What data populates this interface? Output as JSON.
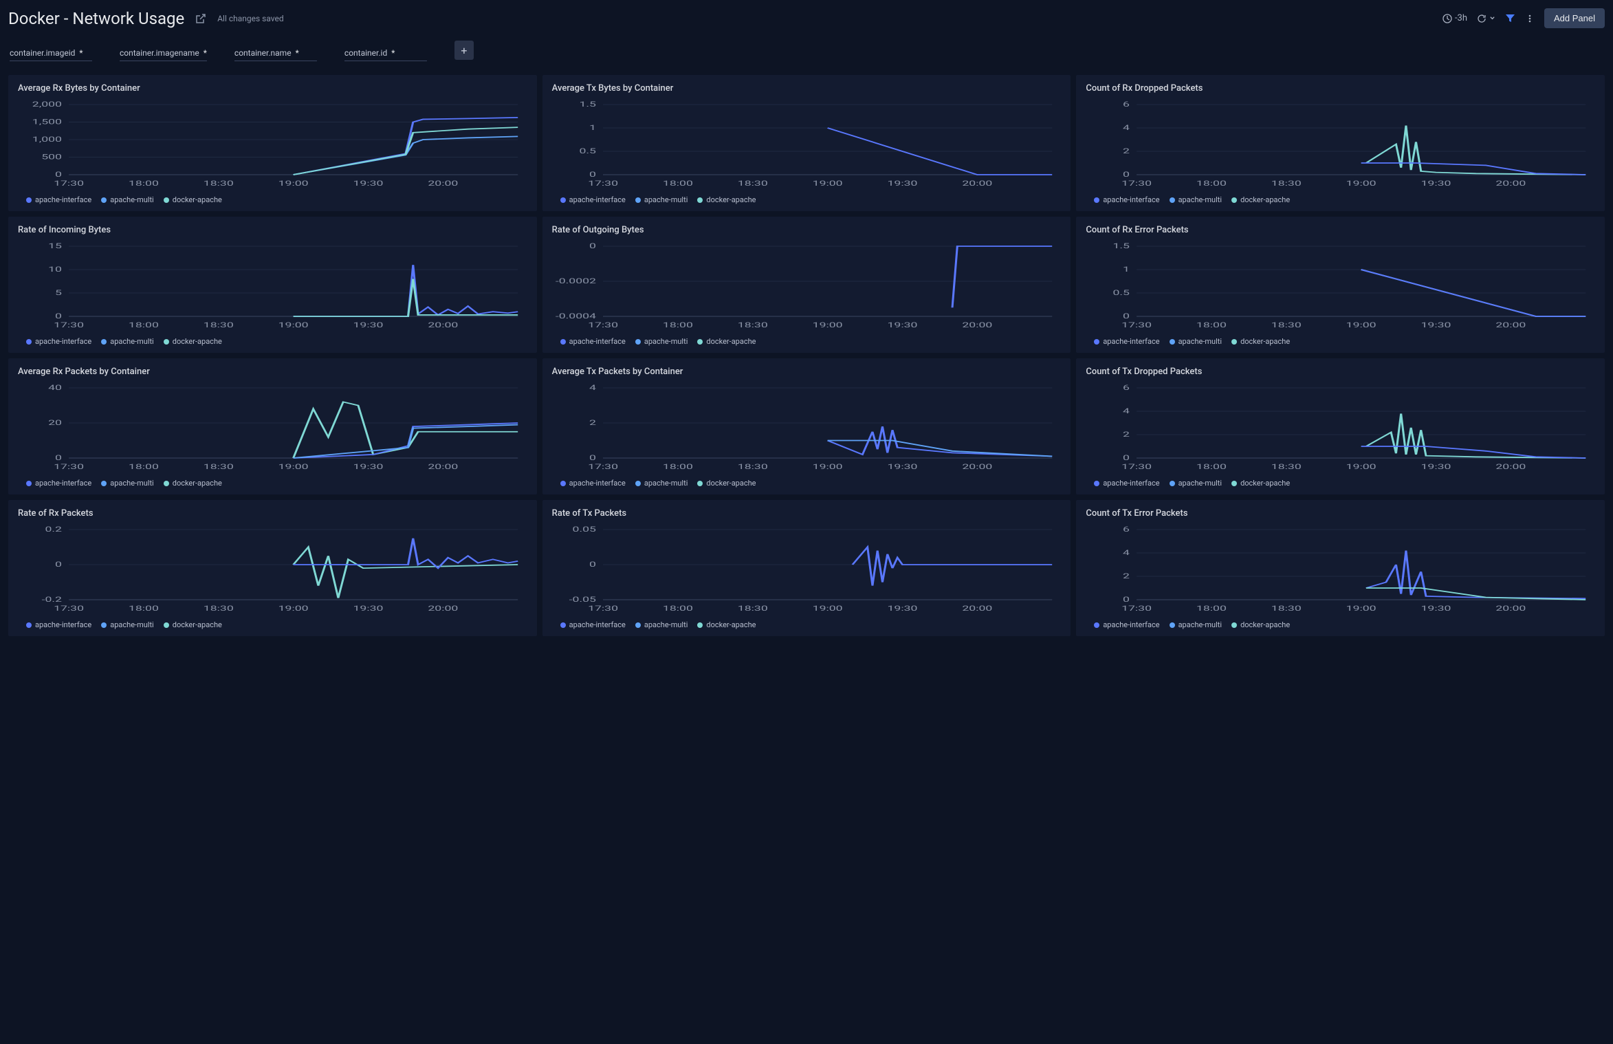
{
  "header": {
    "title": "Docker - Network Usage",
    "save_status": "All changes saved",
    "time_range": "-3h",
    "add_panel_label": "Add Panel"
  },
  "filters": [
    {
      "label": "container.imageid",
      "value": "*"
    },
    {
      "label": "container.imagename",
      "value": "*"
    },
    {
      "label": "container.name",
      "value": "*"
    },
    {
      "label": "container.id",
      "value": "*"
    }
  ],
  "colors": {
    "bg": "#0d1424",
    "panel_bg": "#131b30",
    "text": "#d4d7de",
    "muted": "#8a93a6",
    "grid": "#1f2a42",
    "axis": "#3a4560",
    "series": {
      "apache-interface": "#5a78ff",
      "apache-multi": "#5fa3f7",
      "docker-apache": "#7fd8d4"
    }
  },
  "x_axis": {
    "ticks": [
      "17:30",
      "18:00",
      "18:30",
      "19:00",
      "19:30",
      "20:00"
    ],
    "min": 0,
    "max": 180
  },
  "legend_items": [
    "apache-interface",
    "apache-multi",
    "docker-apache"
  ],
  "panels": [
    {
      "id": "avg-rx-bytes",
      "title": "Average Rx Bytes by Container",
      "y": {
        "min": 0,
        "max": 2000,
        "ticks": [
          0,
          500,
          1000,
          1500,
          2000
        ],
        "labels": [
          "0",
          "500",
          "1,000",
          "1,500",
          "2,000"
        ]
      },
      "legend_order": [
        "apache-interface",
        "apache-multi",
        "docker-apache"
      ],
      "series": [
        {
          "name": "apache-interface",
          "points": [
            [
              90,
              0
            ],
            [
              135,
              600
            ],
            [
              138,
              1500
            ],
            [
              142,
              1580
            ],
            [
              160,
              1600
            ],
            [
              180,
              1630
            ]
          ]
        },
        {
          "name": "apache-multi",
          "points": [
            [
              90,
              0
            ],
            [
              135,
              560
            ],
            [
              138,
              900
            ],
            [
              142,
              1000
            ],
            [
              160,
              1050
            ],
            [
              180,
              1090
            ]
          ]
        },
        {
          "name": "docker-apache",
          "points": [
            [
              90,
              0
            ],
            [
              135,
              580
            ],
            [
              138,
              1200
            ],
            [
              160,
              1300
            ],
            [
              180,
              1350
            ]
          ]
        }
      ]
    },
    {
      "id": "avg-tx-bytes",
      "title": "Average Tx Bytes by Container",
      "y": {
        "min": 0,
        "max": 1.5,
        "ticks": [
          0,
          0.5,
          1,
          1.5
        ],
        "labels": [
          "0",
          "0.5",
          "1",
          "1.5"
        ]
      },
      "legend_order": [
        "apache-interface",
        "apache-multi",
        "docker-apache"
      ],
      "series": [
        {
          "name": "apache-interface",
          "points": [
            [
              90,
              1
            ],
            [
              150,
              0
            ],
            [
              180,
              0
            ]
          ]
        }
      ]
    },
    {
      "id": "rx-dropped",
      "title": "Count of Rx Dropped Packets",
      "y": {
        "min": 0,
        "max": 6,
        "ticks": [
          0,
          2,
          4,
          6
        ],
        "labels": [
          "0",
          "2",
          "4",
          "6"
        ]
      },
      "legend_order": [
        "apache-interface",
        "apache-multi",
        "docker-apache"
      ],
      "series": [
        {
          "name": "docker-apache",
          "points": [
            [
              92,
              1
            ],
            [
              104,
              2.6
            ],
            [
              106,
              0.6
            ],
            [
              108,
              4.2
            ],
            [
              110,
              0.4
            ],
            [
              112,
              2.8
            ],
            [
              114,
              0.3
            ],
            [
              120,
              0.2
            ],
            [
              136,
              0.1
            ],
            [
              180,
              0
            ]
          ]
        },
        {
          "name": "apache-interface",
          "points": [
            [
              90,
              1
            ],
            [
              112,
              1
            ],
            [
              140,
              0.8
            ],
            [
              160,
              0.1
            ],
            [
              180,
              0
            ]
          ]
        }
      ]
    },
    {
      "id": "rate-incoming",
      "title": "Rate of Incoming Bytes",
      "y": {
        "min": 0,
        "max": 15,
        "ticks": [
          0,
          5,
          10,
          15
        ],
        "labels": [
          "0",
          "5",
          "10",
          "15"
        ]
      },
      "legend_order": [
        "apache-interface",
        "apache-multi",
        "docker-apache"
      ],
      "series": [
        {
          "name": "apache-interface",
          "points": [
            [
              90,
              0
            ],
            [
              136,
              0
            ],
            [
              138,
              11
            ],
            [
              140,
              0.5
            ],
            [
              144,
              2
            ],
            [
              148,
              0.3
            ],
            [
              152,
              1.5
            ],
            [
              156,
              0.6
            ],
            [
              160,
              2.2
            ],
            [
              164,
              0.5
            ],
            [
              170,
              1
            ],
            [
              176,
              0.7
            ],
            [
              180,
              1
            ]
          ]
        },
        {
          "name": "docker-apache",
          "points": [
            [
              90,
              0
            ],
            [
              136,
              0
            ],
            [
              138,
              8
            ],
            [
              140,
              0.3
            ],
            [
              180,
              0.3
            ]
          ]
        }
      ]
    },
    {
      "id": "rate-outgoing",
      "title": "Rate of Outgoing Bytes",
      "y": {
        "min": -0.0004,
        "max": 0,
        "ticks": [
          -0.0004,
          -0.0002,
          0
        ],
        "labels": [
          "-0.0004",
          "-0.0002",
          "0"
        ]
      },
      "legend_order": [
        "apache-interface",
        "apache-multi",
        "docker-apache"
      ],
      "series": [
        {
          "name": "apache-interface",
          "points": [
            [
              140,
              -0.00035
            ],
            [
              142,
              0
            ],
            [
              180,
              0
            ]
          ]
        }
      ]
    },
    {
      "id": "rx-error",
      "title": "Count of Rx Error Packets",
      "y": {
        "min": 0,
        "max": 1.5,
        "ticks": [
          0,
          0.5,
          1,
          1.5
        ],
        "labels": [
          "0",
          "0.5",
          "1",
          "1.5"
        ]
      },
      "legend_order": [
        "apache-interface",
        "apache-multi",
        "docker-apache"
      ],
      "series": [
        {
          "name": "docker-apache",
          "points": [
            [
              90,
              1
            ],
            [
              160,
              0
            ],
            [
              180,
              0
            ]
          ]
        },
        {
          "name": "apache-interface",
          "points": [
            [
              90,
              1
            ],
            [
              160,
              0
            ],
            [
              180,
              0
            ]
          ]
        }
      ]
    },
    {
      "id": "avg-rx-packets",
      "title": "Average Rx Packets by Container",
      "y": {
        "min": 0,
        "max": 40,
        "ticks": [
          0,
          20,
          40
        ],
        "labels": [
          "0",
          "20",
          "40"
        ]
      },
      "legend_order": [
        "apache-interface",
        "apache-multi",
        "docker-apache"
      ],
      "series": [
        {
          "name": "docker-apache",
          "points": [
            [
              90,
              0
            ],
            [
              98,
              28
            ],
            [
              104,
              12
            ],
            [
              110,
              32
            ],
            [
              116,
              30
            ],
            [
              122,
              2
            ],
            [
              136,
              6
            ],
            [
              140,
              15
            ],
            [
              160,
              15
            ],
            [
              180,
              15
            ]
          ]
        },
        {
          "name": "apache-interface",
          "points": [
            [
              90,
              0
            ],
            [
              122,
              2
            ],
            [
              136,
              7
            ],
            [
              138,
              18
            ],
            [
              160,
              19
            ],
            [
              180,
              20
            ]
          ]
        },
        {
          "name": "apache-multi",
          "points": [
            [
              90,
              0
            ],
            [
              136,
              6
            ],
            [
              138,
              17
            ],
            [
              160,
              18
            ],
            [
              180,
              19
            ]
          ]
        }
      ]
    },
    {
      "id": "avg-tx-packets",
      "title": "Average Tx Packets by Container",
      "y": {
        "min": 0,
        "max": 4,
        "ticks": [
          0,
          2,
          4
        ],
        "labels": [
          "0",
          "2",
          "4"
        ]
      },
      "legend_order": [
        "apache-interface",
        "apache-multi",
        "docker-apache"
      ],
      "series": [
        {
          "name": "apache-interface",
          "points": [
            [
              90,
              1
            ],
            [
              104,
              0.2
            ],
            [
              108,
              1.5
            ],
            [
              110,
              0.5
            ],
            [
              112,
              1.8
            ],
            [
              114,
              0.3
            ],
            [
              116,
              1.6
            ],
            [
              118,
              0.6
            ],
            [
              140,
              0.3
            ],
            [
              180,
              0.1
            ]
          ]
        },
        {
          "name": "apache-multi",
          "points": [
            [
              90,
              1
            ],
            [
              116,
              1
            ],
            [
              140,
              0.4
            ],
            [
              180,
              0.1
            ]
          ]
        }
      ]
    },
    {
      "id": "tx-dropped",
      "title": "Count of Tx Dropped Packets",
      "y": {
        "min": 0,
        "max": 6,
        "ticks": [
          0,
          2,
          4,
          6
        ],
        "labels": [
          "0",
          "2",
          "4",
          "6"
        ]
      },
      "legend_order": [
        "apache-interface",
        "apache-multi",
        "docker-apache"
      ],
      "series": [
        {
          "name": "docker-apache",
          "points": [
            [
              92,
              1
            ],
            [
              102,
              2.2
            ],
            [
              104,
              0.4
            ],
            [
              106,
              3.8
            ],
            [
              108,
              0.3
            ],
            [
              110,
              2.6
            ],
            [
              112,
              0.3
            ],
            [
              114,
              2.4
            ],
            [
              116,
              0.2
            ],
            [
              136,
              0.1
            ],
            [
              180,
              0
            ]
          ]
        },
        {
          "name": "apache-interface",
          "points": [
            [
              90,
              1
            ],
            [
              116,
              1
            ],
            [
              140,
              0.6
            ],
            [
              160,
              0.1
            ],
            [
              180,
              0
            ]
          ]
        }
      ]
    },
    {
      "id": "rate-rx-packets",
      "title": "Rate of Rx Packets",
      "y": {
        "min": -0.2,
        "max": 0.2,
        "ticks": [
          -0.2,
          0,
          0.2
        ],
        "labels": [
          "-0.2",
          "0",
          "0.2"
        ]
      },
      "legend_order": [
        "apache-interface",
        "apache-multi",
        "docker-apache"
      ],
      "series": [
        {
          "name": "docker-apache",
          "points": [
            [
              90,
              0
            ],
            [
              96,
              0.1
            ],
            [
              100,
              -0.12
            ],
            [
              104,
              0.05
            ],
            [
              108,
              -0.19
            ],
            [
              112,
              0.03
            ],
            [
              118,
              -0.02
            ],
            [
              180,
              0
            ]
          ]
        },
        {
          "name": "apache-interface",
          "points": [
            [
              90,
              0
            ],
            [
              136,
              0
            ],
            [
              138,
              0.15
            ],
            [
              140,
              0
            ],
            [
              144,
              0.03
            ],
            [
              148,
              -0.02
            ],
            [
              152,
              0.04
            ],
            [
              156,
              0.01
            ],
            [
              160,
              0.05
            ],
            [
              164,
              0.01
            ],
            [
              170,
              0.03
            ],
            [
              176,
              0.01
            ],
            [
              180,
              0.02
            ]
          ]
        }
      ]
    },
    {
      "id": "rate-tx-packets",
      "title": "Rate of Tx Packets",
      "y": {
        "min": -0.05,
        "max": 0.05,
        "ticks": [
          -0.05,
          0,
          0.05
        ],
        "labels": [
          "-0.05",
          "0",
          "0.05"
        ]
      },
      "legend_order": [
        "apache-interface",
        "apache-multi",
        "docker-apache"
      ],
      "series": [
        {
          "name": "apache-interface",
          "points": [
            [
              100,
              0
            ],
            [
              106,
              0.025
            ],
            [
              108,
              -0.03
            ],
            [
              110,
              0.02
            ],
            [
              112,
              -0.025
            ],
            [
              114,
              0.015
            ],
            [
              116,
              -0.005
            ],
            [
              118,
              0.01
            ],
            [
              120,
              0
            ],
            [
              180,
              0
            ]
          ]
        }
      ]
    },
    {
      "id": "tx-error",
      "title": "Count of Tx Error Packets",
      "y": {
        "min": 0,
        "max": 6,
        "ticks": [
          0,
          2,
          4,
          6
        ],
        "labels": [
          "0",
          "2",
          "4",
          "6"
        ]
      },
      "legend_order": [
        "apache-interface",
        "apache-multi",
        "docker-apache"
      ],
      "series": [
        {
          "name": "apache-interface",
          "points": [
            [
              92,
              1
            ],
            [
              100,
              1.5
            ],
            [
              104,
              3.0
            ],
            [
              106,
              0.5
            ],
            [
              108,
              4.2
            ],
            [
              110,
              0.4
            ],
            [
              114,
              2.4
            ],
            [
              116,
              0.3
            ],
            [
              136,
              0.2
            ],
            [
              180,
              0.1
            ]
          ]
        },
        {
          "name": "docker-apache",
          "points": [
            [
              92,
              1
            ],
            [
              114,
              1
            ],
            [
              140,
              0.2
            ],
            [
              180,
              0
            ]
          ]
        }
      ]
    }
  ]
}
